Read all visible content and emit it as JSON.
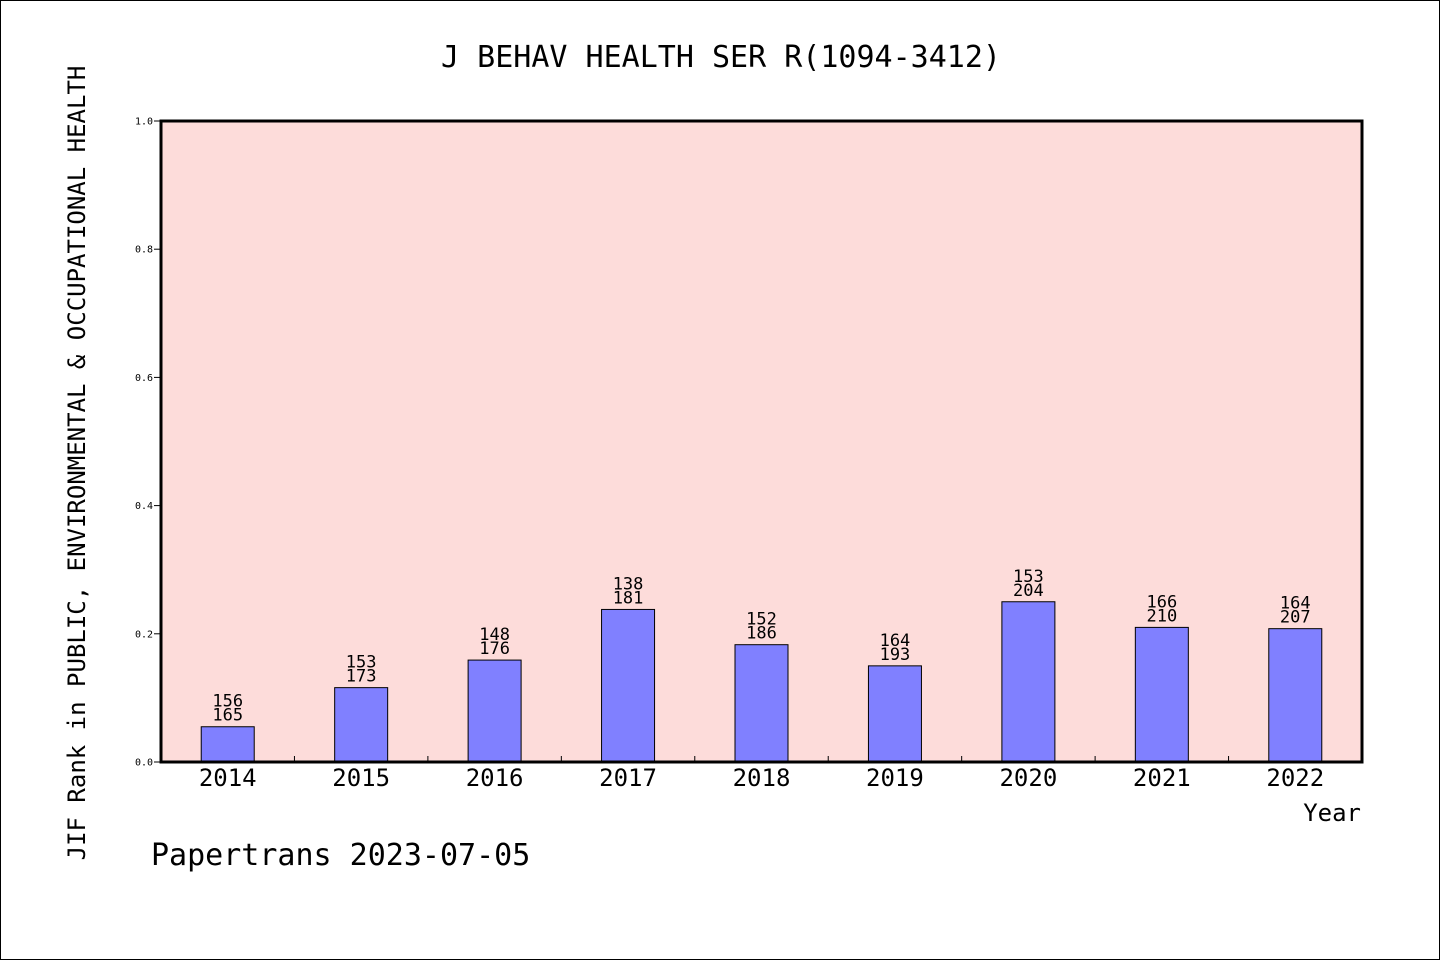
{
  "chart_data": {
    "type": "bar",
    "title": "J BEHAV HEALTH SER R(1094-3412)",
    "xlabel": "Year",
    "ylabel": "JIF Rank in PUBLIC, ENVIRONMENTAL & OCCUPATIONAL HEALTH",
    "categories": [
      "2014",
      "2015",
      "2016",
      "2017",
      "2018",
      "2019",
      "2020",
      "2021",
      "2022"
    ],
    "rank": [
      156,
      153,
      148,
      138,
      152,
      164,
      153,
      166,
      164
    ],
    "total": [
      165,
      173,
      176,
      181,
      186,
      193,
      204,
      210,
      207
    ],
    "values": [
      0.055,
      0.116,
      0.159,
      0.238,
      0.183,
      0.15,
      0.25,
      0.21,
      0.208
    ],
    "ylim": [
      0,
      1.0
    ],
    "yticks": [
      "0.0",
      "0.2",
      "0.4",
      "0.6",
      "0.8",
      "1.0"
    ],
    "grid": false,
    "colors": {
      "plot_bg": "#FDDCDA",
      "bar": "#8080FF"
    }
  },
  "footer": "Papertrans 2023-07-05"
}
